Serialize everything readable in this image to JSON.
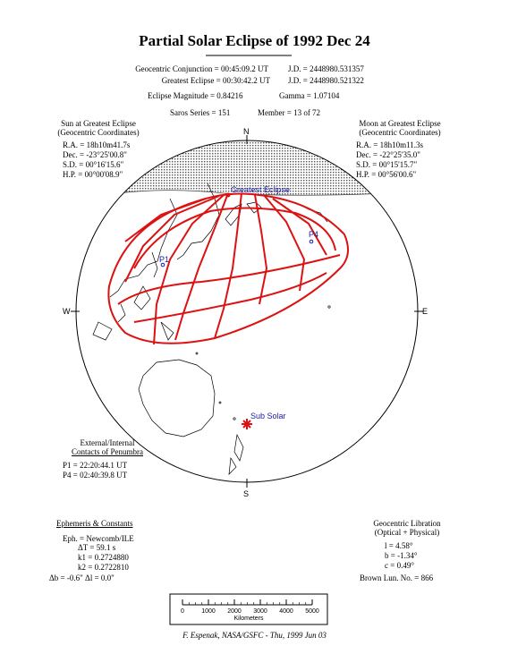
{
  "title": "Partial Solar Eclipse of 1992 Dec 24",
  "header": {
    "conjunction": "Geocentric Conjunction =  00:45:09.2 UT",
    "conjunction_jd": "J.D. =  2448980.531357",
    "greatest": "Greatest Eclipse =  00:30:42.2 UT",
    "greatest_jd": "J.D. =  2448980.521322",
    "magnitude": "Eclipse Magnitude =  0.84216",
    "gamma": "Gamma =  1.07104",
    "saros": "Saros Series = 151",
    "member": "Member = 13 of 72"
  },
  "sun": {
    "heading1": "Sun at Greatest Eclipse",
    "heading2": "(Geocentric Coordinates)",
    "ra": "R.A. = 18h10m41.7s",
    "dec": "Dec. = -23°25'00.8\"",
    "sd": "S.D. =  00°16'15.6\"",
    "hp": "H.P. =  00°00'08.9\""
  },
  "moon": {
    "heading1": "Moon at Greatest Eclipse",
    "heading2": "(Geocentric Coordinates)",
    "ra": "R.A. = 18h10m11.3s",
    "dec": "Dec. = -22°25'35.0\"",
    "sd": "S.D. =  00°15'15.7\"",
    "hp": "H.P. =  00°56'00.6\""
  },
  "compass": {
    "n": "N",
    "s": "S",
    "w": "W",
    "e": "E"
  },
  "map_labels": {
    "greatest_eclipse": "Greatest Eclipse",
    "p1": "P1",
    "p4": "P4",
    "sub_solar": "Sub Solar"
  },
  "contacts": {
    "heading1": "External/Internal",
    "heading2": "Contacts of Penumbra",
    "p1": "P1 = 22:20:44.1 UT",
    "p4": "P4 = 02:40:39.8 UT"
  },
  "ephemeris": {
    "heading": "Ephemeris & Constants",
    "eph": "Eph. = Newcomb/ILE",
    "dt": "ΔT =      59.1 s",
    "k1": "k1 = 0.2724880",
    "k2": "k2 = 0.2722810",
    "db": "Δb =  -0.6\"     Δl =    0.0\""
  },
  "libration": {
    "heading1": "Geocentric Libration",
    "heading2": "(Optical + Physical)",
    "l": "l =    4.58°",
    "b": "b =  -1.34°",
    "c": "c =   0.49°",
    "brown": "Brown Lun. No. =  866"
  },
  "scale": {
    "ticks": [
      "0",
      "1000",
      "2000",
      "3000",
      "4000",
      "5000"
    ],
    "unit": "Kilometers"
  },
  "credit": "F. Espenak, NASA/GSFC - Thu, 1999 Jun 03",
  "colors": {
    "eclipse_lines": "#dd1111",
    "labels": "#1a1aaa",
    "night": "#8a8a8a"
  }
}
